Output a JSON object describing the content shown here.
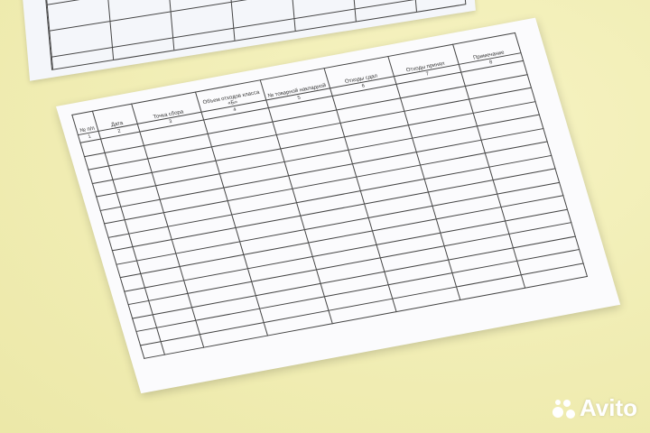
{
  "table": {
    "headers": [
      "№ п/п",
      "Дата",
      "Точка сбора",
      "Объем отходов класса «Б»",
      "№ товарной накладной",
      "Отходы сдал",
      "Отходы принял",
      "Примечание"
    ],
    "numbers": [
      "1",
      "2",
      "3",
      "4",
      "5",
      "6",
      "7",
      "8"
    ],
    "empty_rows": 16
  },
  "watermark": {
    "text": "Avito"
  }
}
